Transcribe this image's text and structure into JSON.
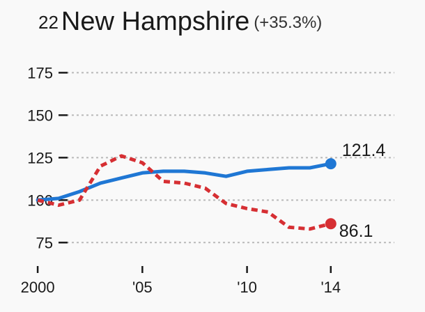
{
  "header": {
    "rank": "22",
    "state": "New Hampshire",
    "change": "(+35.3%)"
  },
  "chart_data": {
    "type": "line",
    "title": "New Hampshire",
    "xlabel": "",
    "ylabel": "",
    "x": [
      2000,
      2001,
      2002,
      2003,
      2004,
      2005,
      2006,
      2007,
      2008,
      2009,
      2010,
      2011,
      2012,
      2013,
      2014
    ],
    "x_ticks": [
      {
        "value": 2000,
        "label": "2000"
      },
      {
        "value": 2005,
        "label": "'05"
      },
      {
        "value": 2010,
        "label": "'10"
      },
      {
        "value": 2014,
        "label": "'14"
      }
    ],
    "y_ticks": [
      75,
      100,
      125,
      150,
      175
    ],
    "ylim": [
      62,
      185
    ],
    "xlim": [
      1998.2,
      2018.5
    ],
    "grid": true,
    "series": [
      {
        "style": "solid",
        "color": "#1f77d4",
        "values": [
          100,
          101,
          105,
          110,
          113,
          116,
          117,
          117,
          116,
          114,
          117,
          118,
          119,
          119,
          121.4
        ],
        "end_label": "121.4"
      },
      {
        "style": "dashed",
        "color": "#d62f33",
        "values": [
          100,
          97,
          100,
          120,
          126,
          122,
          111,
          110,
          107,
          98,
          95,
          93,
          84,
          83,
          86.1
        ],
        "end_label": "86.1"
      }
    ]
  }
}
